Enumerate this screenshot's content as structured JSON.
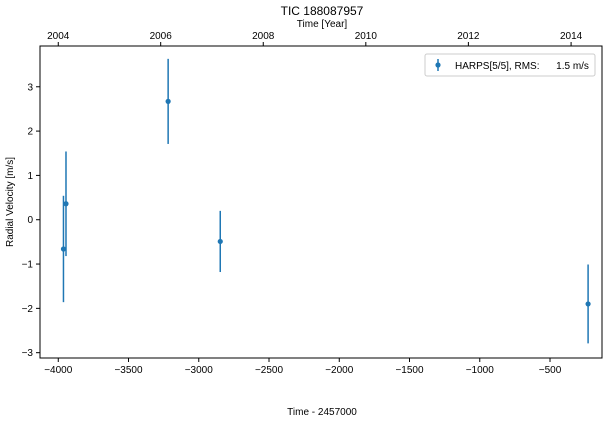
{
  "chart_data": {
    "type": "scatter",
    "title": "TIC 188087957",
    "xlabel": "Time - 2457000",
    "ylabel": "Radial Velocity [m/s]",
    "top_xlabel": "Time [Year]",
    "xlim": [
      -4130,
      -130
    ],
    "ylim": [
      -3.12,
      3.92
    ],
    "xticks": [
      -4000,
      -3500,
      -3000,
      -2500,
      -2000,
      -1500,
      -1000,
      -500
    ],
    "xtick_labels": [
      "−4000",
      "−3500",
      "−3000",
      "−2500",
      "−2000",
      "−1500",
      "−1000",
      "−500"
    ],
    "yticks": [
      -3,
      -2,
      -1,
      0,
      1,
      2,
      3
    ],
    "ytick_labels": [
      "−3",
      "−2",
      "−1",
      "0",
      "1",
      "2",
      "3"
    ],
    "top_xticks": [
      -4000,
      -3271,
      -2541,
      -1811,
      -1081,
      -350
    ],
    "top_xtick_labels": [
      "2004",
      "2006",
      "2008",
      "2010",
      "2012",
      "2014"
    ],
    "grid": false,
    "legend_position": "top-right",
    "series": [
      {
        "name": "HARPS[5/5], RMS:      1.5 m/s",
        "color": "#1f77b4",
        "points": [
          {
            "x": -3963,
            "y": -0.66,
            "err": 1.2
          },
          {
            "x": -3945,
            "y": 0.36,
            "err": 1.18
          },
          {
            "x": -3218,
            "y": 2.67,
            "err": 0.96
          },
          {
            "x": -2847,
            "y": -0.49,
            "err": 0.69
          },
          {
            "x": -229,
            "y": -1.9,
            "err": 0.89
          }
        ]
      }
    ]
  }
}
